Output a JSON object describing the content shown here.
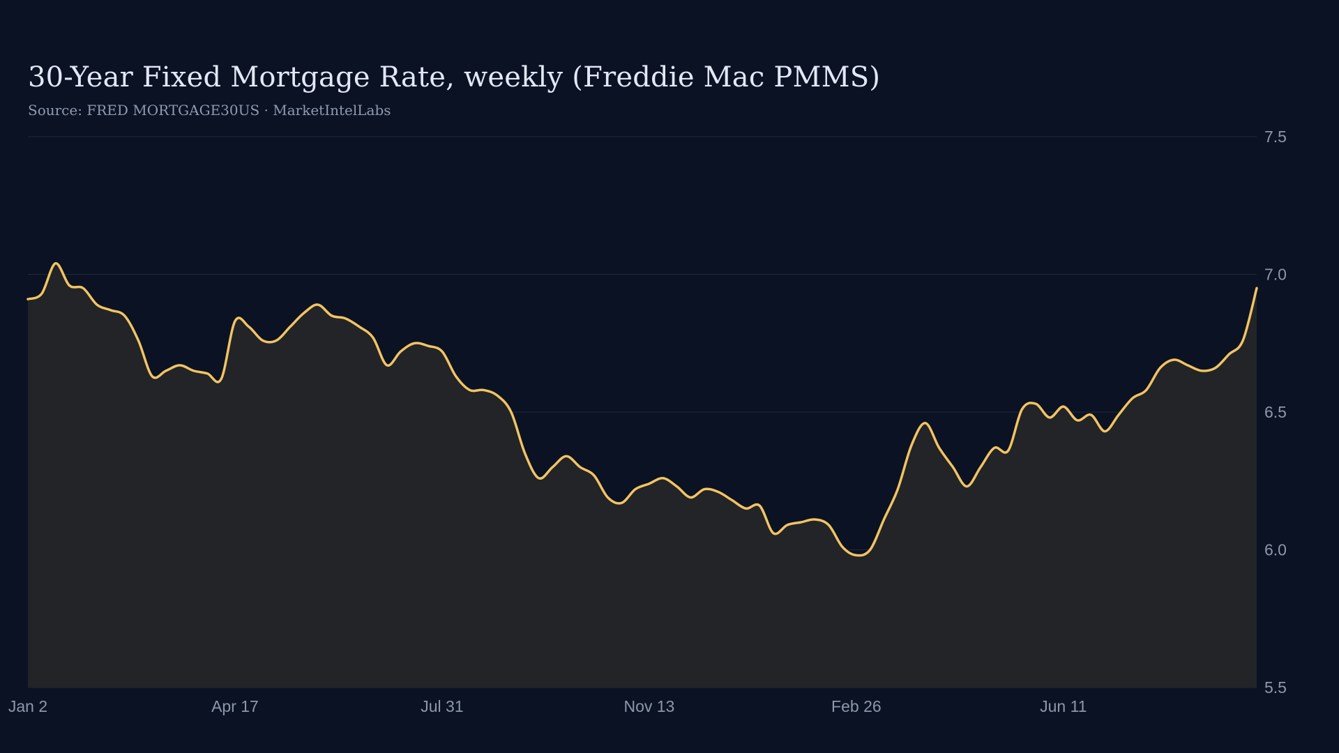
{
  "chart_data": {
    "type": "area",
    "title": "30-Year Fixed Mortgage Rate, weekly (Freddie Mac PMMS)",
    "subtitle": "Source: FRED MORTGAGE30US · MarketIntelLabs",
    "xlabel": "",
    "ylabel": "",
    "ylim": [
      5.5,
      7.5
    ],
    "y_ticks": [
      "7.5",
      "7.0",
      "6.5",
      "6.0",
      "5.5"
    ],
    "y_axis_side": "right",
    "x_tick_labels": [
      "Jan  2",
      "Apr 17",
      "Jul 31",
      "Nov 13",
      "Feb 26",
      "Jun 11"
    ],
    "x_tick_index": [
      0,
      15,
      30,
      45,
      60,
      75
    ],
    "grid": "horizontal",
    "legend": "none",
    "colors": {
      "line": "#f2c462",
      "area": "#232427",
      "grid": "#1f2a3a",
      "background": "#0b1224"
    },
    "series": [
      {
        "values": [
          6.91,
          6.93,
          7.04,
          6.96,
          6.95,
          6.89,
          6.87,
          6.85,
          6.76,
          6.63,
          6.65,
          6.67,
          6.65,
          6.64,
          6.62,
          6.83,
          6.81,
          6.76,
          6.76,
          6.81,
          6.86,
          6.89,
          6.85,
          6.84,
          6.81,
          6.77,
          6.67,
          6.72,
          6.75,
          6.74,
          6.72,
          6.63,
          6.58,
          6.58,
          6.56,
          6.5,
          6.35,
          6.26,
          6.3,
          6.34,
          6.3,
          6.27,
          6.19,
          6.17,
          6.22,
          6.24,
          6.26,
          6.23,
          6.19,
          6.22,
          6.21,
          6.18,
          6.15,
          6.16,
          6.06,
          6.09,
          6.1,
          6.11,
          6.09,
          6.01,
          5.98,
          6.0,
          6.11,
          6.22,
          6.38,
          6.46,
          6.37,
          6.3,
          6.23,
          6.3,
          6.37,
          6.36,
          6.51,
          6.53,
          6.48,
          6.52,
          6.47,
          6.49,
          6.43,
          6.49,
          6.55,
          6.58,
          6.66,
          6.69,
          6.67,
          6.65,
          6.66,
          6.71,
          6.76,
          6.95
        ]
      }
    ]
  }
}
